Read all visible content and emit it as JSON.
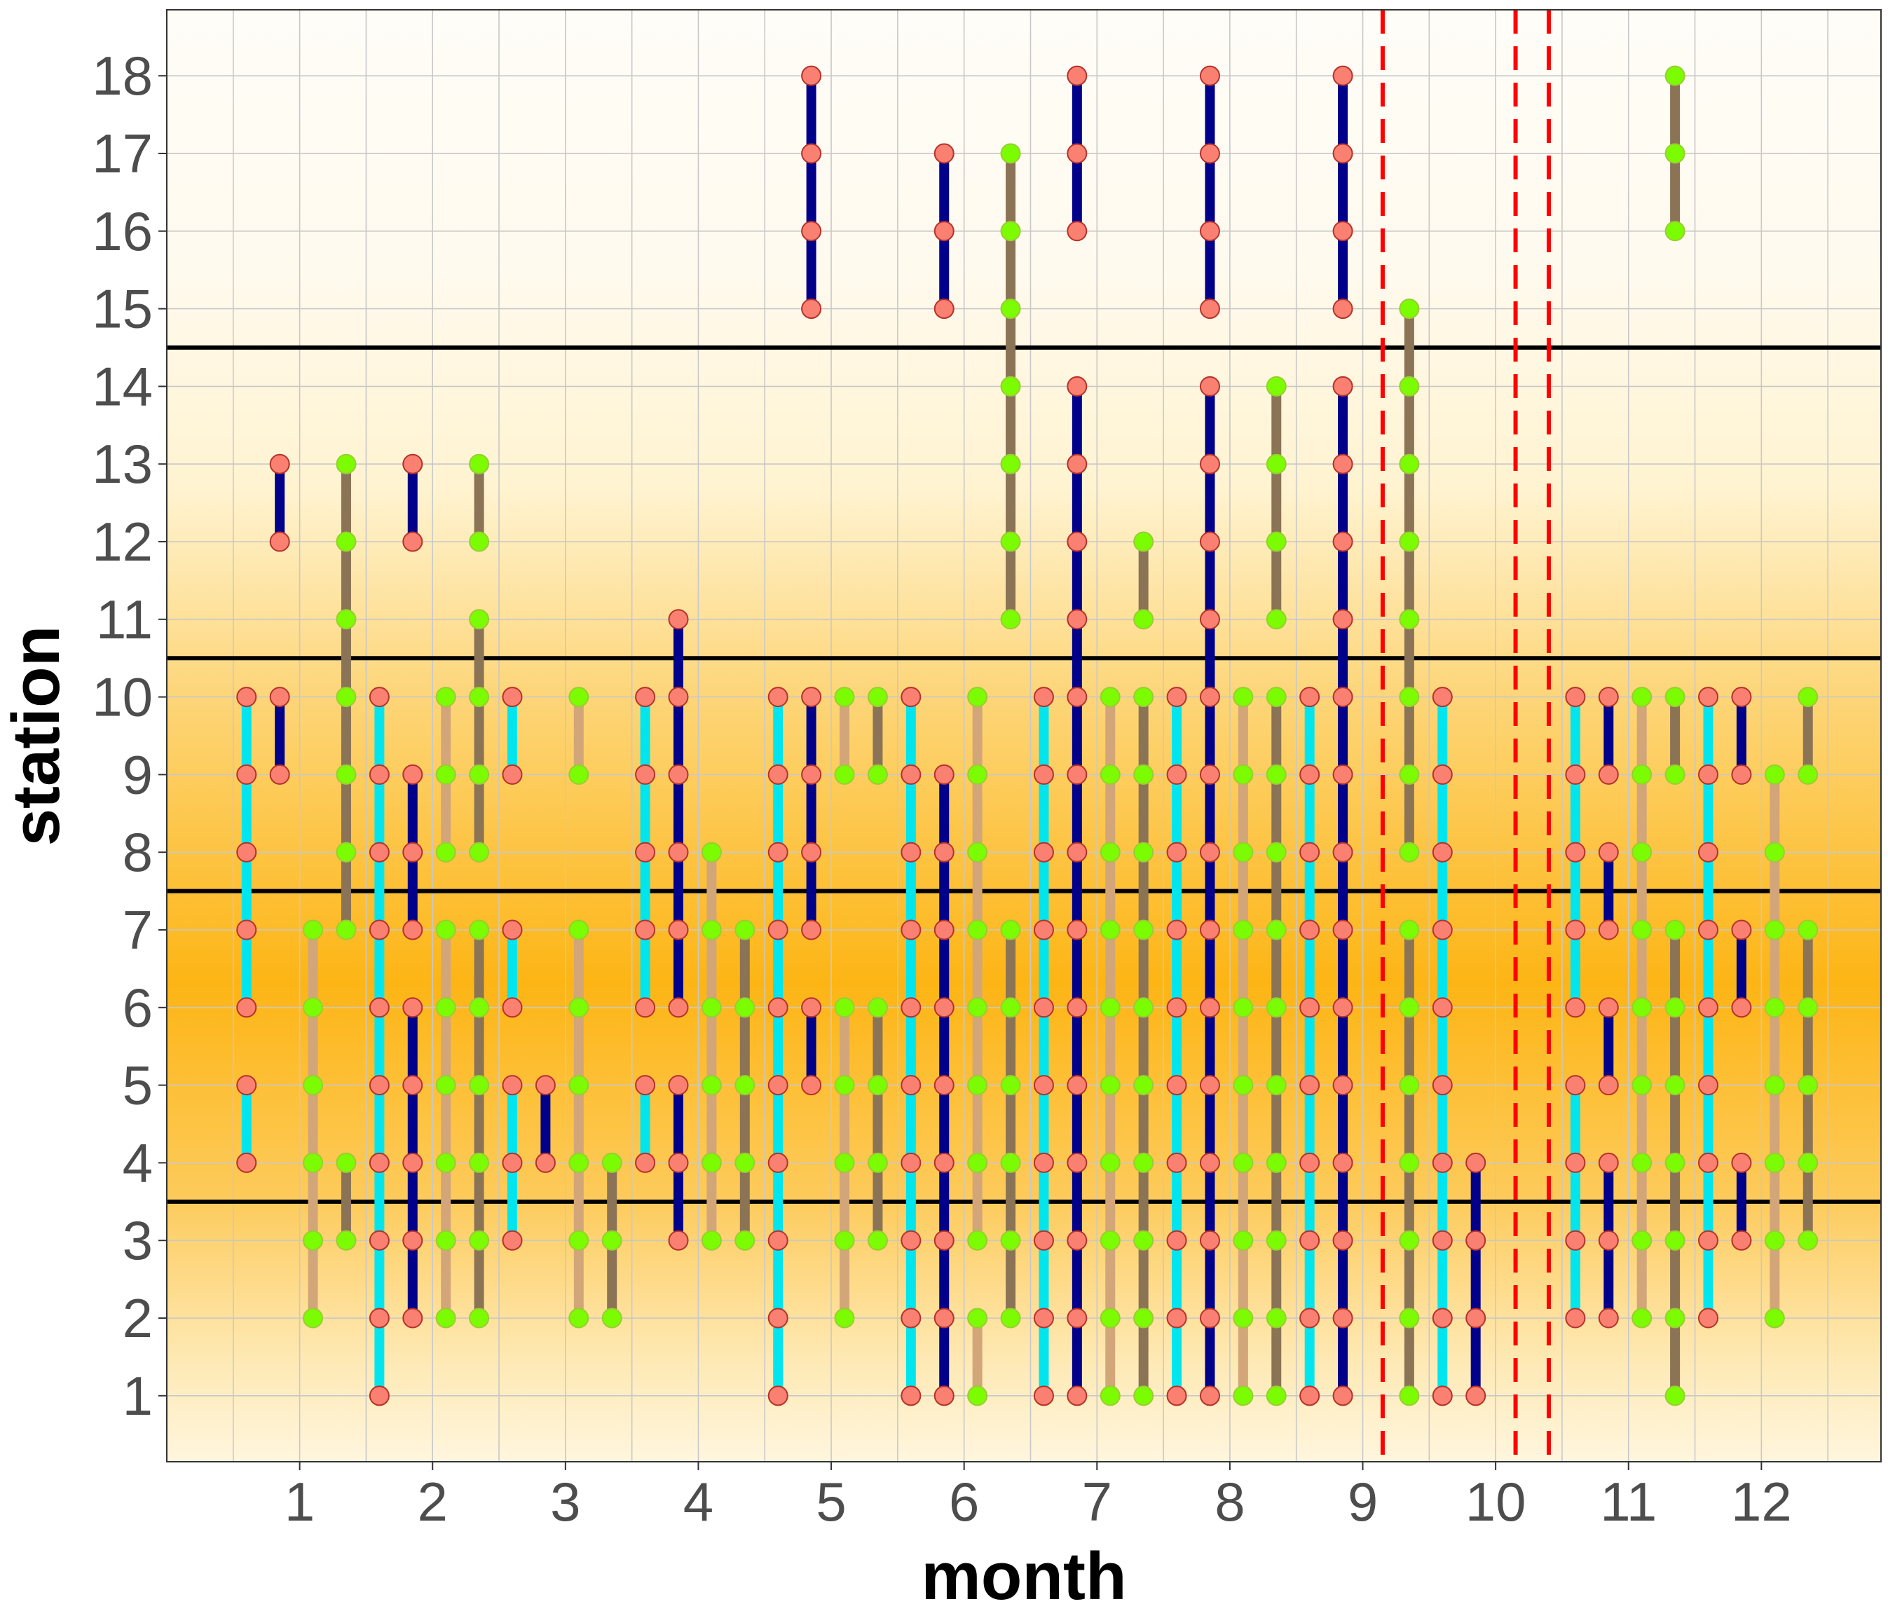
{
  "chart_data": {
    "type": "scatter",
    "xlabel": "month",
    "ylabel": "station",
    "xlim": [
      0,
      12.9
    ],
    "ylim": [
      0.15,
      18.85
    ],
    "x_ticks": [
      "1",
      "2",
      "3",
      "4",
      "5",
      "6",
      "7",
      "8",
      "9",
      "10",
      "11",
      "12"
    ],
    "y_ticks": [
      "1",
      "2",
      "3",
      "4",
      "5",
      "6",
      "7",
      "8",
      "9",
      "10",
      "11",
      "12",
      "13",
      "14",
      "15",
      "16",
      "17",
      "18"
    ],
    "grid": true,
    "background": "vertical gradient, orange (#FDB515) centered at station ~6.5 fading to near white at top and bottom",
    "horizontal_reference_lines": [
      3.5,
      7.5,
      10.5,
      14.5
    ],
    "vertical_dashed_lines": [
      9.15,
      10.15,
      10.4
    ],
    "colors": {
      "series_a_line": "#00E5EE",
      "series_b_line": "#00008B",
      "series_c_line": "#D2A679",
      "series_d_line": "#8B7355",
      "point_salmon": "#FA8072",
      "point_green": "#7CFC00",
      "reference_line": "#000000",
      "dashed_line": "#FF0000",
      "gradient_center": "#FDB515"
    },
    "segments": [
      {
        "x": 0.6,
        "c": "a",
        "p": "s",
        "pts": [
          4,
          5
        ]
      },
      {
        "x": 0.6,
        "c": "a",
        "p": "s",
        "pts": [
          6,
          7,
          8,
          9,
          10
        ]
      },
      {
        "x": 0.85,
        "c": "b",
        "p": "s",
        "pts": [
          9,
          10
        ]
      },
      {
        "x": 0.85,
        "c": "b",
        "p": "s",
        "pts": [
          12,
          13
        ]
      },
      {
        "x": 1.1,
        "c": "c",
        "p": "g",
        "pts": [
          2,
          3,
          4,
          5,
          6,
          7
        ]
      },
      {
        "x": 1.35,
        "c": "d",
        "p": "g",
        "pts": [
          3,
          4
        ]
      },
      {
        "x": 1.35,
        "c": "d",
        "p": "g",
        "pts": [
          7,
          8,
          9,
          10,
          11,
          12,
          13
        ]
      },
      {
        "x": 1.6,
        "c": "a",
        "p": "s",
        "pts": [
          1,
          2,
          3,
          4,
          5,
          6,
          7,
          8,
          9,
          10
        ]
      },
      {
        "x": 1.85,
        "c": "b",
        "p": "s",
        "pts": [
          2,
          3,
          4,
          5,
          6
        ]
      },
      {
        "x": 1.85,
        "c": "b",
        "p": "s",
        "pts": [
          7,
          8,
          9
        ]
      },
      {
        "x": 1.85,
        "c": "b",
        "p": "s",
        "pts": [
          12,
          13
        ]
      },
      {
        "x": 2.1,
        "c": "c",
        "p": "g",
        "pts": [
          2,
          3,
          4,
          5,
          6,
          7
        ]
      },
      {
        "x": 2.1,
        "c": "c",
        "p": "g",
        "pts": [
          8,
          9,
          10
        ]
      },
      {
        "x": 2.35,
        "c": "d",
        "p": "g",
        "pts": [
          2,
          3,
          4,
          5,
          6,
          7
        ]
      },
      {
        "x": 2.35,
        "c": "d",
        "p": "g",
        "pts": [
          8,
          9,
          10,
          11
        ]
      },
      {
        "x": 2.35,
        "c": "d",
        "p": "g",
        "pts": [
          12,
          13
        ]
      },
      {
        "x": 2.6,
        "c": "a",
        "p": "s",
        "pts": [
          3,
          4,
          5
        ]
      },
      {
        "x": 2.6,
        "c": "a",
        "p": "s",
        "pts": [
          6,
          7
        ]
      },
      {
        "x": 2.6,
        "c": "a",
        "p": "s",
        "pts": [
          9,
          10
        ]
      },
      {
        "x": 2.85,
        "c": "b",
        "p": "s",
        "pts": [
          4,
          5
        ]
      },
      {
        "x": 3.1,
        "c": "c",
        "p": "g",
        "pts": [
          2,
          3,
          4,
          5,
          6,
          7
        ]
      },
      {
        "x": 3.1,
        "c": "c",
        "p": "g",
        "pts": [
          9,
          10
        ]
      },
      {
        "x": 3.35,
        "c": "d",
        "p": "g",
        "pts": [
          2,
          3,
          4
        ]
      },
      {
        "x": 3.6,
        "c": "a",
        "p": "s",
        "pts": [
          4,
          5
        ]
      },
      {
        "x": 3.6,
        "c": "a",
        "p": "s",
        "pts": [
          6,
          7,
          8,
          9,
          10
        ]
      },
      {
        "x": 3.85,
        "c": "b",
        "p": "s",
        "pts": [
          3,
          4,
          5
        ]
      },
      {
        "x": 3.85,
        "c": "b",
        "p": "s",
        "pts": [
          6,
          7,
          8,
          9,
          10,
          11
        ]
      },
      {
        "x": 4.1,
        "c": "c",
        "p": "g",
        "pts": [
          3,
          4,
          5,
          6,
          7,
          8
        ]
      },
      {
        "x": 4.35,
        "c": "d",
        "p": "g",
        "pts": [
          3,
          4,
          5,
          6,
          7
        ]
      },
      {
        "x": 4.6,
        "c": "a",
        "p": "s",
        "pts": [
          1,
          2,
          3,
          4,
          5,
          6,
          7,
          8,
          9,
          10
        ]
      },
      {
        "x": 4.85,
        "c": "b",
        "p": "s",
        "pts": [
          5,
          6
        ]
      },
      {
        "x": 4.85,
        "c": "b",
        "p": "s",
        "pts": [
          7,
          8,
          9,
          10
        ]
      },
      {
        "x": 4.85,
        "c": "b",
        "p": "s",
        "pts": [
          15,
          16,
          17,
          18
        ]
      },
      {
        "x": 5.1,
        "c": "c",
        "p": "g",
        "pts": [
          2,
          3,
          4,
          5,
          6
        ]
      },
      {
        "x": 5.1,
        "c": "c",
        "p": "g",
        "pts": [
          9,
          10
        ]
      },
      {
        "x": 5.35,
        "c": "d",
        "p": "g",
        "pts": [
          3,
          4,
          5,
          6
        ]
      },
      {
        "x": 5.35,
        "c": "d",
        "p": "g",
        "pts": [
          9,
          10
        ]
      },
      {
        "x": 5.6,
        "c": "a",
        "p": "s",
        "pts": [
          1,
          2,
          3,
          4,
          5,
          6,
          7,
          8,
          9,
          10
        ]
      },
      {
        "x": 5.85,
        "c": "b",
        "p": "s",
        "pts": [
          1,
          2,
          3,
          4,
          5,
          6,
          7,
          8,
          9
        ]
      },
      {
        "x": 5.85,
        "c": "b",
        "p": "s",
        "pts": [
          15,
          16,
          17
        ]
      },
      {
        "x": 6.1,
        "c": "c",
        "p": "g",
        "pts": [
          1,
          2
        ]
      },
      {
        "x": 6.1,
        "c": "c",
        "p": "g",
        "pts": [
          3,
          4,
          5,
          6,
          7,
          8,
          9,
          10
        ]
      },
      {
        "x": 6.35,
        "c": "d",
        "p": "g",
        "pts": [
          2,
          3,
          4,
          5,
          6,
          7
        ]
      },
      {
        "x": 6.35,
        "c": "d",
        "p": "g",
        "pts": [
          11,
          12,
          13,
          14,
          15,
          16,
          17
        ]
      },
      {
        "x": 6.6,
        "c": "a",
        "p": "s",
        "pts": [
          1,
          2,
          3,
          4,
          5,
          6,
          7,
          8,
          9,
          10
        ]
      },
      {
        "x": 6.85,
        "c": "b",
        "p": "s",
        "pts": [
          1,
          2,
          3,
          4,
          5,
          6,
          7,
          8,
          9,
          10,
          11,
          12,
          13,
          14
        ]
      },
      {
        "x": 6.85,
        "c": "b",
        "p": "s",
        "pts": [
          16,
          17,
          18
        ]
      },
      {
        "x": 7.1,
        "c": "c",
        "p": "g",
        "pts": [
          1,
          2,
          3,
          4,
          5,
          6,
          7,
          8,
          9,
          10
        ]
      },
      {
        "x": 7.35,
        "c": "d",
        "p": "g",
        "pts": [
          1,
          2,
          3,
          4,
          5,
          6,
          7,
          8,
          9,
          10
        ]
      },
      {
        "x": 7.35,
        "c": "d",
        "p": "g",
        "pts": [
          11,
          12
        ]
      },
      {
        "x": 7.6,
        "c": "a",
        "p": "s",
        "pts": [
          1,
          2,
          3,
          4,
          5,
          6,
          7,
          8,
          9,
          10
        ]
      },
      {
        "x": 7.85,
        "c": "b",
        "p": "s",
        "pts": [
          1,
          2,
          3,
          4,
          5,
          6,
          7,
          8,
          9,
          10,
          11,
          12,
          13,
          14
        ]
      },
      {
        "x": 7.85,
        "c": "b",
        "p": "s",
        "pts": [
          15,
          16,
          17,
          18
        ]
      },
      {
        "x": 8.1,
        "c": "c",
        "p": "g",
        "pts": [
          1,
          2,
          3,
          4,
          5,
          6,
          7,
          8,
          9,
          10
        ]
      },
      {
        "x": 8.35,
        "c": "d",
        "p": "g",
        "pts": [
          1,
          2,
          3,
          4,
          5,
          6,
          7,
          8,
          9,
          10
        ]
      },
      {
        "x": 8.35,
        "c": "d",
        "p": "g",
        "pts": [
          11,
          12,
          13,
          14
        ]
      },
      {
        "x": 8.6,
        "c": "a",
        "p": "s",
        "pts": [
          1,
          2,
          3,
          4,
          5,
          6,
          7,
          8,
          9,
          10
        ]
      },
      {
        "x": 8.85,
        "c": "b",
        "p": "s",
        "pts": [
          1,
          2,
          3,
          4,
          5,
          6,
          7,
          8,
          9,
          10,
          11,
          12,
          13,
          14
        ]
      },
      {
        "x": 8.85,
        "c": "b",
        "p": "s",
        "pts": [
          15,
          16,
          17,
          18
        ]
      },
      {
        "x": 9.35,
        "c": "d",
        "p": "g",
        "pts": [
          1,
          2,
          3,
          4,
          5,
          6,
          7
        ]
      },
      {
        "x": 9.35,
        "c": "d",
        "p": "g",
        "pts": [
          8,
          9,
          10,
          11,
          12,
          13,
          14,
          15
        ]
      },
      {
        "x": 9.6,
        "c": "a",
        "p": "s",
        "pts": [
          1,
          2,
          3,
          4,
          5,
          6,
          7,
          8,
          9,
          10
        ]
      },
      {
        "x": 9.85,
        "c": "b",
        "p": "s",
        "pts": [
          1,
          2,
          3,
          4
        ]
      },
      {
        "x": 10.6,
        "c": "a",
        "p": "s",
        "pts": [
          2,
          3,
          4,
          5
        ]
      },
      {
        "x": 10.6,
        "c": "a",
        "p": "s",
        "pts": [
          6,
          7,
          8,
          9,
          10
        ]
      },
      {
        "x": 10.85,
        "c": "b",
        "p": "s",
        "pts": [
          2,
          3,
          4
        ]
      },
      {
        "x": 10.85,
        "c": "b",
        "p": "s",
        "pts": [
          5,
          6
        ]
      },
      {
        "x": 10.85,
        "c": "b",
        "p": "s",
        "pts": [
          7,
          8
        ]
      },
      {
        "x": 10.85,
        "c": "b",
        "p": "s",
        "pts": [
          9,
          10
        ]
      },
      {
        "x": 11.1,
        "c": "c",
        "p": "g",
        "pts": [
          2,
          3,
          4,
          5,
          6,
          7,
          8,
          9,
          10
        ]
      },
      {
        "x": 11.35,
        "c": "d",
        "p": "g",
        "pts": [
          1,
          2,
          3,
          4,
          5,
          6,
          7
        ]
      },
      {
        "x": 11.35,
        "c": "d",
        "p": "g",
        "pts": [
          9,
          10
        ]
      },
      {
        "x": 11.35,
        "c": "d",
        "p": "g",
        "pts": [
          16,
          17,
          18
        ]
      },
      {
        "x": 11.6,
        "c": "a",
        "p": "s",
        "pts": [
          2,
          3,
          4,
          5,
          6,
          7,
          8,
          9,
          10
        ]
      },
      {
        "x": 11.85,
        "c": "b",
        "p": "s",
        "pts": [
          3,
          4
        ]
      },
      {
        "x": 11.85,
        "c": "b",
        "p": "s",
        "pts": [
          6,
          7
        ]
      },
      {
        "x": 11.85,
        "c": "b",
        "p": "s",
        "pts": [
          9,
          10
        ]
      },
      {
        "x": 12.1,
        "c": "c",
        "p": "g",
        "pts": [
          2,
          3,
          4,
          5,
          6,
          7,
          8,
          9
        ]
      },
      {
        "x": 12.35,
        "c": "d",
        "p": "g",
        "pts": [
          3,
          4,
          5,
          6,
          7
        ]
      },
      {
        "x": 12.35,
        "c": "d",
        "p": "g",
        "pts": [
          9,
          10
        ]
      }
    ]
  }
}
